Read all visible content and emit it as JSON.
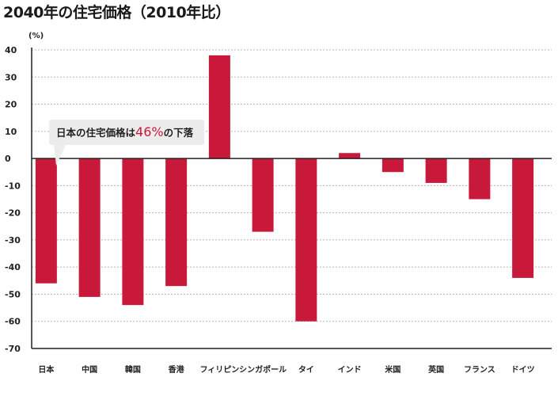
{
  "title": "2040年の住宅価格（2010年比）",
  "unit_label": "(%)",
  "callout": {
    "prefix": "日本の住宅価格は",
    "value": "46%",
    "suffix": "の下落"
  },
  "colors": {
    "bar": "#c8193a",
    "grid": "#b8b8b8",
    "axis": "#222222",
    "callout_bg": "#ececec",
    "callout_value": "#c8193a"
  },
  "chart_data": {
    "type": "bar",
    "title": "2040年の住宅価格（2010年比）",
    "ylabel": "(%)",
    "xlabel": "",
    "categories": [
      "日本",
      "中国",
      "韓国",
      "香港",
      "フィリピン",
      "シンガポール",
      "タイ",
      "インド",
      "米国",
      "英国",
      "フランス",
      "ドイツ"
    ],
    "values": [
      -46,
      -51,
      -54,
      -47,
      38,
      -27,
      -60,
      2,
      -5,
      -9,
      -15,
      -44
    ],
    "ylim": [
      -70,
      40
    ],
    "yticks": [
      "40",
      "30",
      "20",
      "10",
      "0",
      "-10",
      "-20",
      "-30",
      "-40",
      "-50",
      "-60",
      "-70"
    ],
    "grid": true
  }
}
